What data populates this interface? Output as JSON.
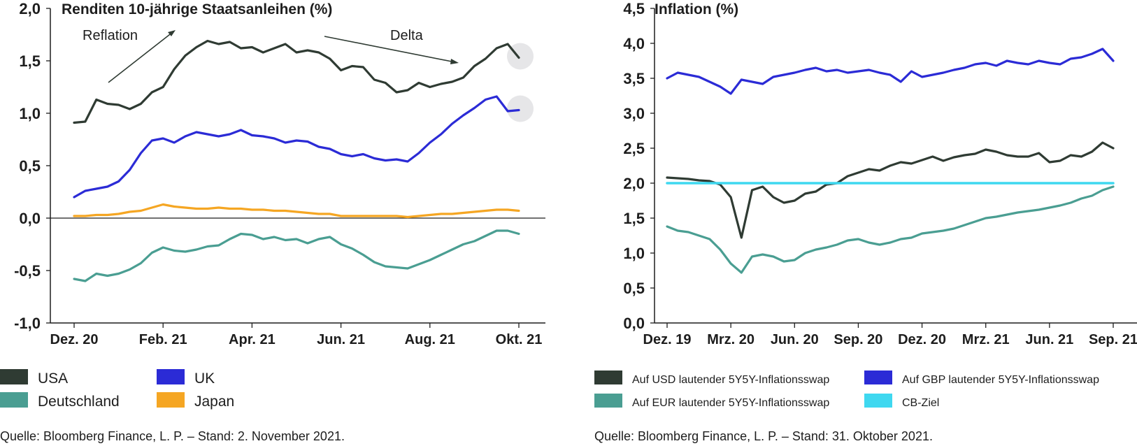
{
  "chart_data": [
    {
      "type": "line",
      "title": "Renditen 10-jährige Staatsanleihen (%)",
      "ylim": [
        -1.0,
        2.0
      ],
      "yticks": [
        "2,0",
        "1,5",
        "1,0",
        "0,5",
        "0,0",
        "-0,5",
        "-1,0"
      ],
      "ytick_values": [
        2.0,
        1.5,
        1.0,
        0.5,
        0.0,
        -0.5,
        -1.0
      ],
      "xticks": [
        "Dez. 20",
        "Feb. 21",
        "Apr. 21",
        "Jun. 21",
        "Aug. 21",
        "Okt. 21"
      ],
      "x_index_range": [
        0,
        40
      ],
      "grid": false,
      "annotations": [
        "Reflation",
        "Delta"
      ],
      "series": [
        {
          "name": "USA",
          "color": "#2f3b33",
          "values": [
            0.91,
            0.92,
            1.13,
            1.09,
            1.08,
            1.04,
            1.09,
            1.2,
            1.25,
            1.42,
            1.55,
            1.63,
            1.69,
            1.66,
            1.68,
            1.62,
            1.63,
            1.58,
            1.62,
            1.66,
            1.58,
            1.6,
            1.58,
            1.52,
            1.41,
            1.45,
            1.44,
            1.32,
            1.29,
            1.2,
            1.22,
            1.29,
            1.25,
            1.28,
            1.3,
            1.34,
            1.45,
            1.52,
            1.62,
            1.66,
            1.53
          ]
        },
        {
          "name": "UK",
          "color": "#2b2bd6",
          "values": [
            0.2,
            0.26,
            0.28,
            0.3,
            0.35,
            0.46,
            0.62,
            0.74,
            0.76,
            0.72,
            0.78,
            0.82,
            0.8,
            0.78,
            0.8,
            0.84,
            0.79,
            0.78,
            0.76,
            0.72,
            0.74,
            0.73,
            0.68,
            0.66,
            0.61,
            0.59,
            0.61,
            0.57,
            0.55,
            0.56,
            0.54,
            0.62,
            0.72,
            0.8,
            0.9,
            0.98,
            1.05,
            1.13,
            1.16,
            1.02,
            1.03
          ]
        },
        {
          "name": "Japan",
          "color": "#f5a623",
          "values": [
            0.02,
            0.02,
            0.03,
            0.03,
            0.04,
            0.06,
            0.07,
            0.1,
            0.13,
            0.11,
            0.1,
            0.09,
            0.09,
            0.1,
            0.09,
            0.09,
            0.08,
            0.08,
            0.07,
            0.07,
            0.06,
            0.05,
            0.04,
            0.04,
            0.02,
            0.02,
            0.02,
            0.02,
            0.02,
            0.02,
            0.01,
            0.02,
            0.03,
            0.04,
            0.04,
            0.05,
            0.06,
            0.07,
            0.08,
            0.08,
            0.07
          ]
        },
        {
          "name": "Deutschland",
          "color": "#4a9e92",
          "values": [
            -0.58,
            -0.6,
            -0.53,
            -0.55,
            -0.53,
            -0.49,
            -0.43,
            -0.33,
            -0.28,
            -0.31,
            -0.32,
            -0.3,
            -0.27,
            -0.26,
            -0.2,
            -0.15,
            -0.16,
            -0.2,
            -0.18,
            -0.21,
            -0.2,
            -0.24,
            -0.2,
            -0.18,
            -0.25,
            -0.29,
            -0.35,
            -0.42,
            -0.46,
            -0.47,
            -0.48,
            -0.44,
            -0.4,
            -0.35,
            -0.3,
            -0.25,
            -0.22,
            -0.17,
            -0.12,
            -0.12,
            -0.15
          ]
        }
      ],
      "highlight_circles_at_end": [
        "USA",
        "UK"
      ],
      "reference_line": 0.0
    },
    {
      "type": "line",
      "title": "Inflation (%)",
      "ylim": [
        0.0,
        4.5
      ],
      "yticks": [
        "4,5",
        "4,0",
        "3,5",
        "3,0",
        "2,5",
        "2,0",
        "1,5",
        "1,0",
        "0,5",
        "0,0"
      ],
      "ytick_values": [
        4.5,
        4.0,
        3.5,
        3.0,
        2.5,
        2.0,
        1.5,
        1.0,
        0.5,
        0.0
      ],
      "xticks": [
        "Dez. 19",
        "Mrz. 20",
        "Jun. 20",
        "Sep. 20",
        "Dez. 20",
        "Mrz. 21",
        "Jun. 21",
        "Sep. 21"
      ],
      "x_index_range": [
        0,
        42
      ],
      "grid": false,
      "series": [
        {
          "name": "Auf USD lautender 5Y5Y-Inflationsswap",
          "color": "#2f3b33",
          "values": [
            2.08,
            2.07,
            2.06,
            2.04,
            2.03,
            1.98,
            1.8,
            1.22,
            1.9,
            1.95,
            1.8,
            1.72,
            1.75,
            1.85,
            1.88,
            1.98,
            2.0,
            2.1,
            2.15,
            2.2,
            2.18,
            2.25,
            2.3,
            2.28,
            2.33,
            2.38,
            2.32,
            2.37,
            2.4,
            2.42,
            2.48,
            2.45,
            2.4,
            2.38,
            2.38,
            2.43,
            2.3,
            2.32,
            2.4,
            2.38,
            2.45,
            2.58,
            2.5
          ]
        },
        {
          "name": "Auf GBP lautender 5Y5Y-Inflationsswap",
          "color": "#2b2bd6",
          "values": [
            3.5,
            3.58,
            3.55,
            3.52,
            3.45,
            3.38,
            3.28,
            3.48,
            3.45,
            3.42,
            3.52,
            3.55,
            3.58,
            3.62,
            3.65,
            3.6,
            3.62,
            3.58,
            3.6,
            3.62,
            3.58,
            3.55,
            3.45,
            3.6,
            3.52,
            3.55,
            3.58,
            3.62,
            3.65,
            3.7,
            3.72,
            3.68,
            3.75,
            3.72,
            3.7,
            3.75,
            3.72,
            3.7,
            3.78,
            3.8,
            3.85,
            3.92,
            3.75
          ]
        },
        {
          "name": "Auf EUR lautender 5Y5Y-Inflationsswap",
          "color": "#4a9e92",
          "values": [
            1.38,
            1.32,
            1.3,
            1.25,
            1.2,
            1.05,
            0.85,
            0.72,
            0.95,
            0.98,
            0.95,
            0.88,
            0.9,
            1.0,
            1.05,
            1.08,
            1.12,
            1.18,
            1.2,
            1.15,
            1.12,
            1.15,
            1.2,
            1.22,
            1.28,
            1.3,
            1.32,
            1.35,
            1.4,
            1.45,
            1.5,
            1.52,
            1.55,
            1.58,
            1.6,
            1.62,
            1.65,
            1.68,
            1.72,
            1.78,
            1.82,
            1.9,
            1.95
          ]
        },
        {
          "name": "CB-Ziel",
          "color": "#3fd8f0",
          "values": [
            2.0,
            2.0,
            2.0,
            2.0,
            2.0,
            2.0,
            2.0,
            2.0,
            2.0,
            2.0,
            2.0,
            2.0,
            2.0,
            2.0,
            2.0,
            2.0,
            2.0,
            2.0,
            2.0,
            2.0,
            2.0,
            2.0,
            2.0,
            2.0,
            2.0,
            2.0,
            2.0,
            2.0,
            2.0,
            2.0,
            2.0,
            2.0,
            2.0,
            2.0,
            2.0,
            2.0,
            2.0,
            2.0,
            2.0,
            2.0,
            2.0,
            2.0,
            2.0
          ]
        }
      ]
    }
  ],
  "legend_left": [
    {
      "label": "USA",
      "color": "#2f3b33"
    },
    {
      "label": "UK",
      "color": "#2b2bd6"
    },
    {
      "label": "Deutschland",
      "color": "#4a9e92"
    },
    {
      "label": "Japan",
      "color": "#f5a623"
    }
  ],
  "legend_right": [
    {
      "label": "Auf USD lautender 5Y5Y-Inflationsswap",
      "color": "#2f3b33"
    },
    {
      "label": "Auf GBP lautender 5Y5Y-Inflationsswap",
      "color": "#2b2bd6"
    },
    {
      "label": "Auf EUR lautender 5Y5Y-Inflationsswap",
      "color": "#4a9e92"
    },
    {
      "label": "CB-Ziel",
      "color": "#3fd8f0"
    }
  ],
  "source_left": "Quelle: Bloomberg Finance, L. P. – Stand: 2. November 2021.",
  "source_right": "Quelle: Bloomberg Finance, L. P. – Stand: 31. Oktober 2021."
}
